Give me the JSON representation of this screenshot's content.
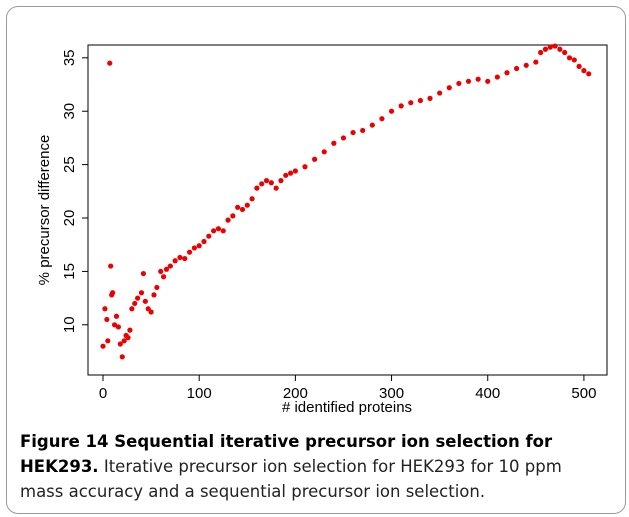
{
  "chart_data": {
    "type": "scatter",
    "xlabel": "# identified proteins",
    "ylabel": "% precursor difference",
    "color": "#ee0000",
    "xlim": [
      -15.6,
      524
    ],
    "ylim": [
      5.3,
      36.2
    ],
    "xticks": [
      0,
      100,
      200,
      300,
      400,
      500
    ],
    "yticks": [
      10,
      15,
      20,
      25,
      30,
      35
    ],
    "x": [
      0,
      2,
      4,
      5,
      7,
      8,
      9,
      10,
      12,
      14,
      16,
      18,
      20,
      22,
      24,
      26,
      28,
      30,
      33,
      36,
      40,
      42,
      44,
      47,
      50,
      53,
      56,
      60,
      63,
      66,
      70,
      75,
      80,
      85,
      90,
      95,
      100,
      105,
      110,
      115,
      120,
      125,
      130,
      135,
      140,
      145,
      150,
      155,
      160,
      165,
      170,
      175,
      180,
      185,
      190,
      195,
      200,
      210,
      220,
      230,
      240,
      250,
      260,
      270,
      280,
      290,
      300,
      310,
      320,
      330,
      340,
      350,
      360,
      370,
      380,
      390,
      400,
      410,
      420,
      430,
      440,
      450,
      455,
      460,
      465,
      470,
      475,
      480,
      485,
      490,
      495,
      500,
      505
    ],
    "values": [
      8,
      11.5,
      10.5,
      8.5,
      34.5,
      15.5,
      12.8,
      13,
      10,
      10.8,
      9.8,
      8.2,
      7,
      8.5,
      9,
      8.8,
      9.5,
      11.5,
      12,
      12.5,
      13,
      14.8,
      12.2,
      11.5,
      11.2,
      12.8,
      13.5,
      15,
      14.5,
      15.2,
      15.5,
      16,
      16.3,
      16.2,
      16.8,
      17.2,
      17.4,
      17.8,
      18.3,
      18.8,
      19,
      18.8,
      19.8,
      20.2,
      21,
      20.8,
      21.2,
      21.8,
      22.8,
      23.2,
      23.5,
      23.3,
      22.8,
      23.5,
      24,
      24.2,
      24.4,
      24.8,
      25.5,
      26.2,
      27,
      27.5,
      28,
      28.2,
      28.7,
      29.3,
      30,
      30.5,
      30.8,
      31,
      31.2,
      31.7,
      32.2,
      32.6,
      32.8,
      33,
      32.8,
      33.2,
      33.6,
      34,
      34.3,
      34.6,
      35.5,
      35.8,
      36,
      36.1,
      35.8,
      35.5,
      35,
      34.8,
      34.2,
      33.8,
      33.5
    ]
  },
  "caption": {
    "label": "Figure 14 Sequential iterative precursor ion selection for HEK293.",
    "text": "Iterative precursor ion selection for HEK293 for 10 ppm mass accuracy and a sequential precursor ion selection."
  }
}
